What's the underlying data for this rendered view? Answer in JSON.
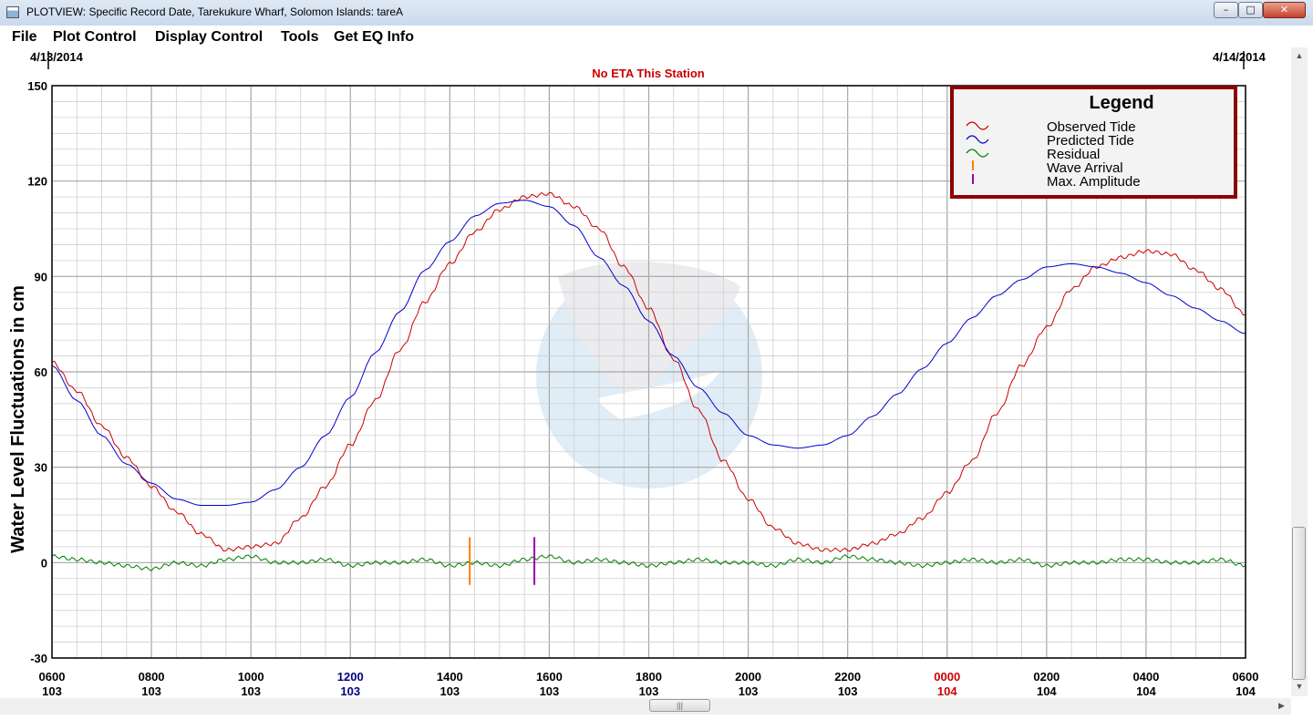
{
  "window": {
    "title": "PLOTVIEW: Specific Record Date, Tarekukure Wharf, Solomon Islands: tareA",
    "minimize_glyph": "–",
    "maximize_glyph": "□",
    "close_glyph": "✕"
  },
  "menu": {
    "items": [
      "File",
      "Plot Control",
      "Display Control",
      "Tools",
      "Get EQ Info"
    ]
  },
  "colors": {
    "observed": "#cc0000",
    "predicted": "#0000cc",
    "residual": "#008000",
    "wave_arrival": "#ff7f00",
    "max_amplitude": "#9900aa",
    "legend_border": "#8b0000",
    "eta": "#cc0000",
    "highlight_noon": "#000080",
    "highlight_midnight": "#cc0000"
  },
  "chart_data": {
    "type": "line",
    "start_date": "4/13/2014",
    "end_date": "4/14/2014",
    "subtitle": "No ETA This Station",
    "ylabel": "Water Level Fluctuations in cm",
    "ylim": [
      -30,
      150
    ],
    "yticks": [
      -30,
      0,
      30,
      60,
      90,
      120,
      150
    ],
    "xlim_hours": [
      6,
      30
    ],
    "grid": true,
    "x_tick_labels": [
      {
        "time": "0600",
        "day": "103"
      },
      {
        "time": "0800",
        "day": "103"
      },
      {
        "time": "1000",
        "day": "103"
      },
      {
        "time": "1200",
        "day": "103",
        "highlight": "noon"
      },
      {
        "time": "1400",
        "day": "103"
      },
      {
        "time": "1600",
        "day": "103"
      },
      {
        "time": "1800",
        "day": "103"
      },
      {
        "time": "2000",
        "day": "103"
      },
      {
        "time": "2200",
        "day": "103"
      },
      {
        "time": "0000",
        "day": "104",
        "highlight": "midnight"
      },
      {
        "time": "0200",
        "day": "104"
      },
      {
        "time": "0400",
        "day": "104"
      },
      {
        "time": "0600",
        "day": "104"
      }
    ],
    "legend": {
      "title": "Legend",
      "position": "top-right",
      "entries": [
        "Observed Tide",
        "Predicted Tide",
        "Residual",
        "Wave Arrival",
        "Max. Amplitude"
      ]
    },
    "series": [
      {
        "name": "Observed Tide",
        "x": [
          6,
          6.5,
          7,
          7.5,
          8,
          8.5,
          9,
          9.5,
          10,
          10.5,
          11,
          11.5,
          12,
          12.5,
          13,
          13.5,
          14,
          14.5,
          15,
          15.5,
          16,
          16.5,
          17,
          17.5,
          18,
          18.5,
          19,
          19.5,
          20,
          20.5,
          21,
          21.5,
          22,
          22.5,
          23,
          23.5,
          24,
          24.5,
          25,
          25.5,
          26,
          26.5,
          27,
          27.5,
          28,
          28.5,
          29,
          29.5,
          30
        ],
        "values": [
          63,
          54,
          43,
          33,
          24,
          16,
          9,
          4,
          5,
          6,
          14,
          24,
          37,
          51,
          67,
          82,
          94,
          104,
          111,
          115,
          116,
          112,
          105,
          93,
          80,
          64,
          48,
          32,
          20,
          11,
          6,
          4,
          4,
          6,
          9,
          14,
          22,
          32,
          47,
          62,
          74,
          86,
          93,
          96,
          98,
          97,
          92,
          86,
          78
        ]
      },
      {
        "name": "Predicted Tide",
        "x": [
          6,
          6.5,
          7,
          7.5,
          8,
          8.5,
          9,
          9.5,
          10,
          10.5,
          11,
          11.5,
          12,
          12.5,
          13,
          13.5,
          14,
          14.5,
          15,
          15.5,
          16,
          16.5,
          17,
          17.5,
          18,
          18.5,
          19,
          19.5,
          20,
          20.5,
          21,
          21.5,
          22,
          22.5,
          23,
          23.5,
          24,
          24.5,
          25,
          25.5,
          26,
          26.5,
          27,
          27.5,
          28,
          28.5,
          29,
          29.5,
          30
        ],
        "values": [
          62,
          51,
          40,
          31,
          25,
          20,
          18,
          18,
          19,
          23,
          30,
          40,
          52,
          66,
          79,
          92,
          101,
          109,
          113,
          114,
          112,
          106,
          96,
          87,
          76,
          65,
          55,
          47,
          40,
          37,
          36,
          37,
          40,
          46,
          53,
          61,
          69,
          77,
          84,
          89,
          93,
          94,
          93,
          91,
          88,
          84,
          80,
          76,
          72
        ]
      },
      {
        "name": "Residual",
        "x": [
          6,
          6.5,
          7,
          7.5,
          8,
          8.5,
          9,
          9.5,
          10,
          10.5,
          11,
          11.5,
          12,
          12.5,
          13,
          13.5,
          14,
          14.5,
          15,
          15.5,
          16,
          16.5,
          17,
          17.5,
          18,
          18.5,
          19,
          19.5,
          20,
          20.5,
          21,
          21.5,
          22,
          22.5,
          23,
          23.5,
          24,
          24.5,
          25,
          25.5,
          26,
          26.5,
          27,
          27.5,
          28,
          28.5,
          29,
          29.5,
          30
        ],
        "values": [
          2,
          1,
          0,
          -1,
          -2,
          0,
          -1,
          1,
          2,
          0,
          0,
          1,
          -1,
          0,
          0,
          1,
          -1,
          0,
          -1,
          1,
          2,
          0,
          1,
          0,
          -1,
          0,
          1,
          0,
          0,
          -1,
          1,
          0,
          2,
          1,
          0,
          -1,
          0,
          1,
          0,
          1,
          -1,
          0,
          0,
          1,
          1,
          0,
          0,
          1,
          -1
        ]
      }
    ],
    "markers": [
      {
        "name": "Wave Arrival",
        "x_hours": 14.4,
        "ymin": -7,
        "ymax": 8
      },
      {
        "name": "Max. Amplitude",
        "x_hours": 15.7,
        "ymin": -7,
        "ymax": 8
      }
    ]
  }
}
